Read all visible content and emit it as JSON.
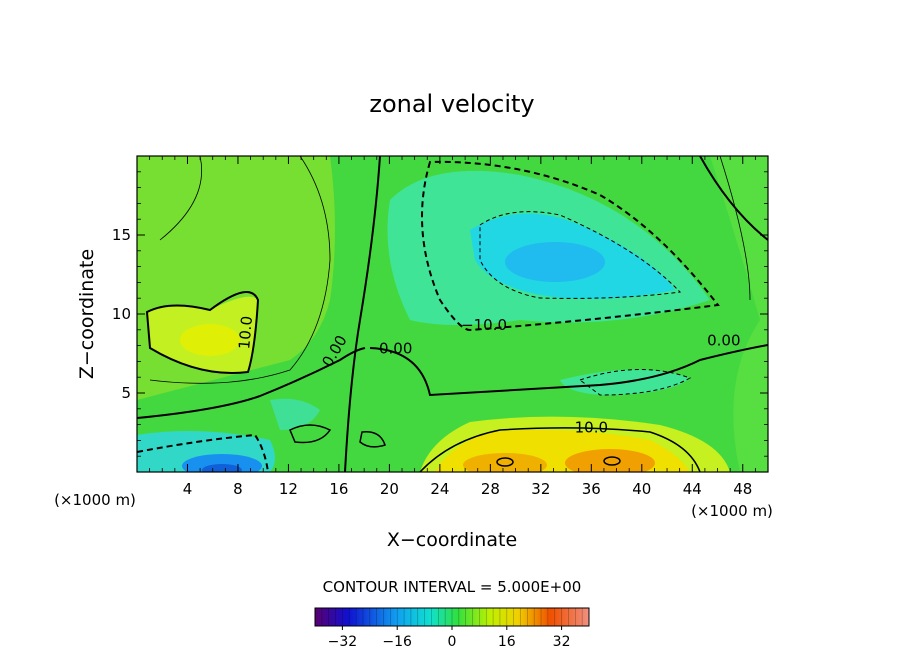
{
  "chart_data": {
    "type": "heatmap",
    "title": "zonal velocity",
    "xlabel": "X−coordinate",
    "ylabel": "Z−coordinate",
    "x_unit_left": "(×1000 m)",
    "x_unit_right": "(×1000 m)",
    "xlim": [
      0,
      50
    ],
    "ylim": [
      0,
      20
    ],
    "x_ticks": [
      4,
      8,
      12,
      16,
      20,
      24,
      28,
      32,
      36,
      40,
      44,
      48
    ],
    "y_ticks": [
      5,
      10,
      15
    ],
    "contour_interval_text": "CONTOUR INTERVAL = 5.000E+00",
    "contour_labels": [
      {
        "text": "10.0",
        "x": 9.0,
        "y": 8.8
      },
      {
        "text": "0.00",
        "x": 16.0,
        "y": 7.5
      },
      {
        "text": "0.00",
        "x": 20.5,
        "y": 7.5
      },
      {
        "text": "−10.0",
        "x": 27.5,
        "y": 9.0
      },
      {
        "text": "10.0",
        "x": 36.0,
        "y": 2.5
      },
      {
        "text": "0.00",
        "x": 46.5,
        "y": 8.0
      }
    ],
    "colorbar": {
      "range": [
        -40,
        40
      ],
      "ticks": [
        -32,
        -16,
        0,
        16,
        32
      ],
      "tick_labels": [
        "−32",
        "−16",
        "0",
        "16",
        "32"
      ]
    },
    "field_features": [
      {
        "kind": "max",
        "x": 6,
        "y": 8,
        "value": 16
      },
      {
        "kind": "min",
        "x": 7.5,
        "y": 0.5,
        "value": -18
      },
      {
        "kind": "min",
        "x": 34.5,
        "y": 13,
        "value": -20
      },
      {
        "kind": "max",
        "x": 30,
        "y": 0.5,
        "value": 22
      },
      {
        "kind": "max",
        "x": 37.5,
        "y": 0.5,
        "value": 26
      }
    ]
  }
}
